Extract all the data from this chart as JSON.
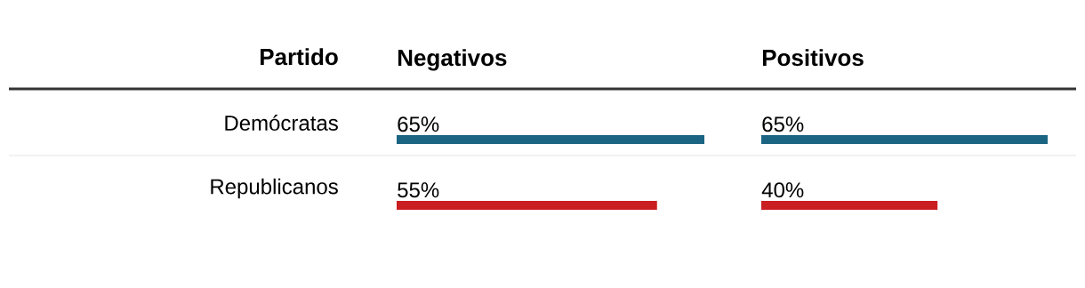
{
  "chart_data": [
    {
      "type": "bar",
      "orientation": "horizontal",
      "title": "Negativos",
      "ylabel": "Partido",
      "categories": [
        "Demócratas",
        "Republicanos"
      ],
      "values": [
        65,
        55
      ],
      "colors": [
        "#1b6582",
        "#c91f21"
      ],
      "value_labels": [
        "65%",
        "55%"
      ],
      "xlim": [
        0,
        65
      ],
      "tick_labels": "y"
    },
    {
      "type": "bar",
      "orientation": "horizontal",
      "title": "Positivos",
      "categories": [
        null,
        null
      ],
      "values": [
        65,
        40
      ],
      "colors": [
        "#1b6582",
        "#c91f21"
      ],
      "value_labels": [
        "65%",
        "40%"
      ],
      "xlim": [
        0,
        65
      ],
      "tick_labels": false
    }
  ]
}
